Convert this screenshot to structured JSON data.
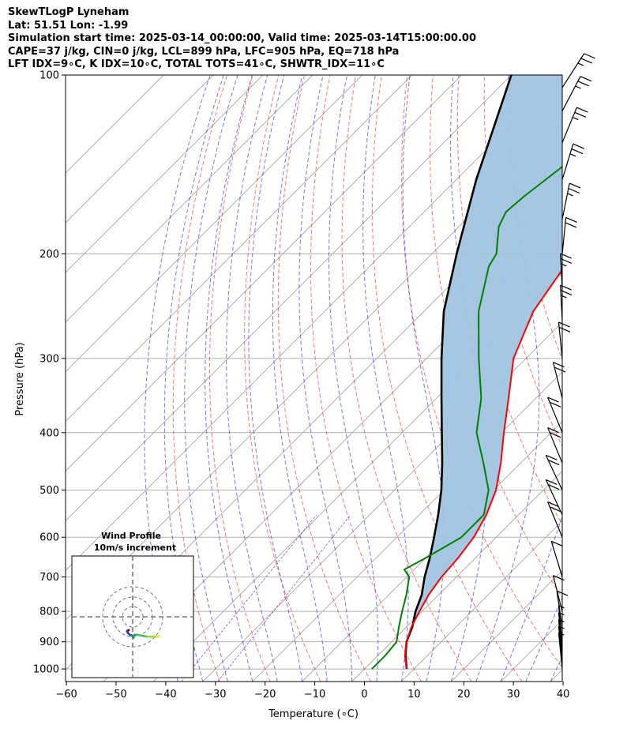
{
  "header": {
    "line1": "SkewTLogP Lyneham",
    "line2": "Lat: 51.51   Lon: -1.99",
    "line3": "Simulation start time: 2025-03-14_00:00:00, Valid time: 2025-03-14T15:00:00.00",
    "line4": "CAPE=37 j/kg, CIN=0 j/kg, LCL=899 hPa, LFC=905 hPa, EQ=718 hPa",
    "line5": "LFT IDX=9∘C, K IDX=10∘C, TOTAL TOTS=41∘C, SHWTR_IDX=11∘C"
  },
  "chart_data": {
    "type": "line",
    "subtype": "skew-T log-p sounding",
    "xlabel": "Temperature (∘C)",
    "ylabel": "Pressure (hPa)",
    "xlim": [
      -60,
      40
    ],
    "ylim": [
      1050,
      100
    ],
    "y_scale": "log",
    "x_ticks": [
      -60,
      -50,
      -40,
      -30,
      -20,
      -10,
      0,
      10,
      20,
      30,
      40
    ],
    "x_tick_labels": [
      "−60",
      "−50",
      "−40",
      "−30",
      "−20",
      "−10",
      "0",
      "10",
      "20",
      "30",
      "40"
    ],
    "y_ticks": [
      1000,
      900,
      800,
      700,
      600,
      500,
      400,
      300,
      200,
      100
    ],
    "y_tick_labels": [
      "1000",
      "900",
      "800",
      "700",
      "600",
      "500",
      "400",
      "300",
      "200",
      "100"
    ],
    "grid": true,
    "colors": {
      "temperature": "#ff0000",
      "dewpoint": "#008000",
      "parcel": "#000000",
      "cape_fill": "#a0c4e0",
      "dry_adiabats": "#ff0000",
      "moist_adiabats": "#0000ff",
      "mixing_lines": "#8000b0",
      "isotherms": "#aaaaaa"
    },
    "series": [
      {
        "role": "temperature",
        "points": [
          [
            1000,
            8.5
          ],
          [
            950,
            5.5
          ],
          [
            900,
            3.0
          ],
          [
            850,
            1.0
          ],
          [
            800,
            -0.5
          ],
          [
            750,
            -2.0
          ],
          [
            700,
            -3.0
          ],
          [
            650,
            -3.5
          ],
          [
            600,
            -4.5
          ],
          [
            550,
            -6.5
          ],
          [
            500,
            -9.5
          ],
          [
            450,
            -14.0
          ],
          [
            400,
            -19.5
          ],
          [
            350,
            -25.5
          ],
          [
            300,
            -32.5
          ],
          [
            250,
            -38.0
          ],
          [
            200,
            -41.5
          ],
          [
            180,
            -40.0
          ],
          [
            160,
            -38.0
          ],
          [
            140,
            -38.5
          ],
          [
            120,
            -39.5
          ],
          [
            100,
            -42.0
          ]
        ]
      },
      {
        "role": "dewpoint",
        "points": [
          [
            1000,
            1.5
          ],
          [
            950,
            1.5
          ],
          [
            900,
            1.0
          ],
          [
            850,
            -1.5
          ],
          [
            800,
            -4.0
          ],
          [
            750,
            -6.5
          ],
          [
            700,
            -9.5
          ],
          [
            680,
            -12.0
          ],
          [
            650,
            -10.0
          ],
          [
            600,
            -7.0
          ],
          [
            550,
            -7.0
          ],
          [
            500,
            -11.0
          ],
          [
            450,
            -17.5
          ],
          [
            400,
            -25.0
          ],
          [
            350,
            -31.0
          ],
          [
            300,
            -39.5
          ],
          [
            250,
            -49.0
          ],
          [
            210,
            -56.0
          ],
          [
            200,
            -57.0
          ],
          [
            180,
            -62.0
          ],
          [
            170,
            -63.5
          ],
          [
            160,
            -63.0
          ],
          [
            140,
            -61.0
          ],
          [
            120,
            -60.0
          ],
          [
            100,
            -59.0
          ]
        ]
      },
      {
        "role": "parcel",
        "points": [
          [
            1000,
            8.5
          ],
          [
            950,
            5.6
          ],
          [
            900,
            3.0
          ],
          [
            850,
            1.2
          ],
          [
            800,
            -1.3
          ],
          [
            750,
            -3.4
          ],
          [
            700,
            -6.4
          ],
          [
            650,
            -9.2
          ],
          [
            600,
            -12.5
          ],
          [
            550,
            -16.2
          ],
          [
            500,
            -20.5
          ],
          [
            450,
            -25.8
          ],
          [
            400,
            -32.0
          ],
          [
            350,
            -39.0
          ],
          [
            300,
            -47.0
          ],
          [
            250,
            -56.0
          ],
          [
            200,
            -65.0
          ],
          [
            150,
            -76.0
          ],
          [
            100,
            -90.0
          ]
        ]
      }
    ],
    "wind_barbs": [
      {
        "p": 1000,
        "u": -2,
        "v": 3
      },
      {
        "p": 975,
        "u": -2,
        "v": 4
      },
      {
        "p": 950,
        "u": -2,
        "v": 4
      },
      {
        "p": 925,
        "u": -2,
        "v": 4
      },
      {
        "p": 900,
        "u": -2,
        "v": 4
      },
      {
        "p": 850,
        "u": -3,
        "v": 5
      },
      {
        "p": 800,
        "u": -5,
        "v": 5
      },
      {
        "p": 700,
        "u": -6,
        "v": 4
      },
      {
        "p": 600,
        "u": -8,
        "v": 6
      },
      {
        "p": 550,
        "u": -9,
        "v": 6
      },
      {
        "p": 500,
        "u": -9,
        "v": 8
      },
      {
        "p": 450,
        "u": -8,
        "v": 8
      },
      {
        "p": 400,
        "u": -8,
        "v": 7
      },
      {
        "p": 350,
        "u": -5,
        "v": 10
      },
      {
        "p": 300,
        "u": -2,
        "v": 12
      },
      {
        "p": 260,
        "u": -1,
        "v": 13
      },
      {
        "p": 230,
        "u": -1,
        "v": 13
      },
      {
        "p": 200,
        "u": 2,
        "v": 12
      },
      {
        "p": 175,
        "u": 4,
        "v": 12
      },
      {
        "p": 150,
        "u": 6,
        "v": 11
      },
      {
        "p": 130,
        "u": 8,
        "v": 10
      },
      {
        "p": 115,
        "u": 10,
        "v": 9
      },
      {
        "p": 105,
        "u": 12,
        "v": 8
      }
    ],
    "inset": {
      "title": "Wind Profile",
      "subtitle": "10m/s increment",
      "hodograph": [
        [
          -2.0,
          0.5
        ],
        [
          -2.5,
          0.2
        ],
        [
          -3.0,
          0.0
        ],
        [
          -2.5,
          -1.0
        ],
        [
          -1.5,
          -2.0
        ],
        [
          0.0,
          -2.5
        ],
        [
          0.5,
          -3.5
        ],
        [
          0.5,
          -2.5
        ],
        [
          1.0,
          -2.0
        ],
        [
          2.5,
          -2.0
        ],
        [
          5.0,
          -2.5
        ],
        [
          8.0,
          -3.0
        ],
        [
          11.0,
          -3.0
        ],
        [
          13.0,
          -3.0
        ],
        [
          14.0,
          -2.5
        ]
      ]
    }
  }
}
